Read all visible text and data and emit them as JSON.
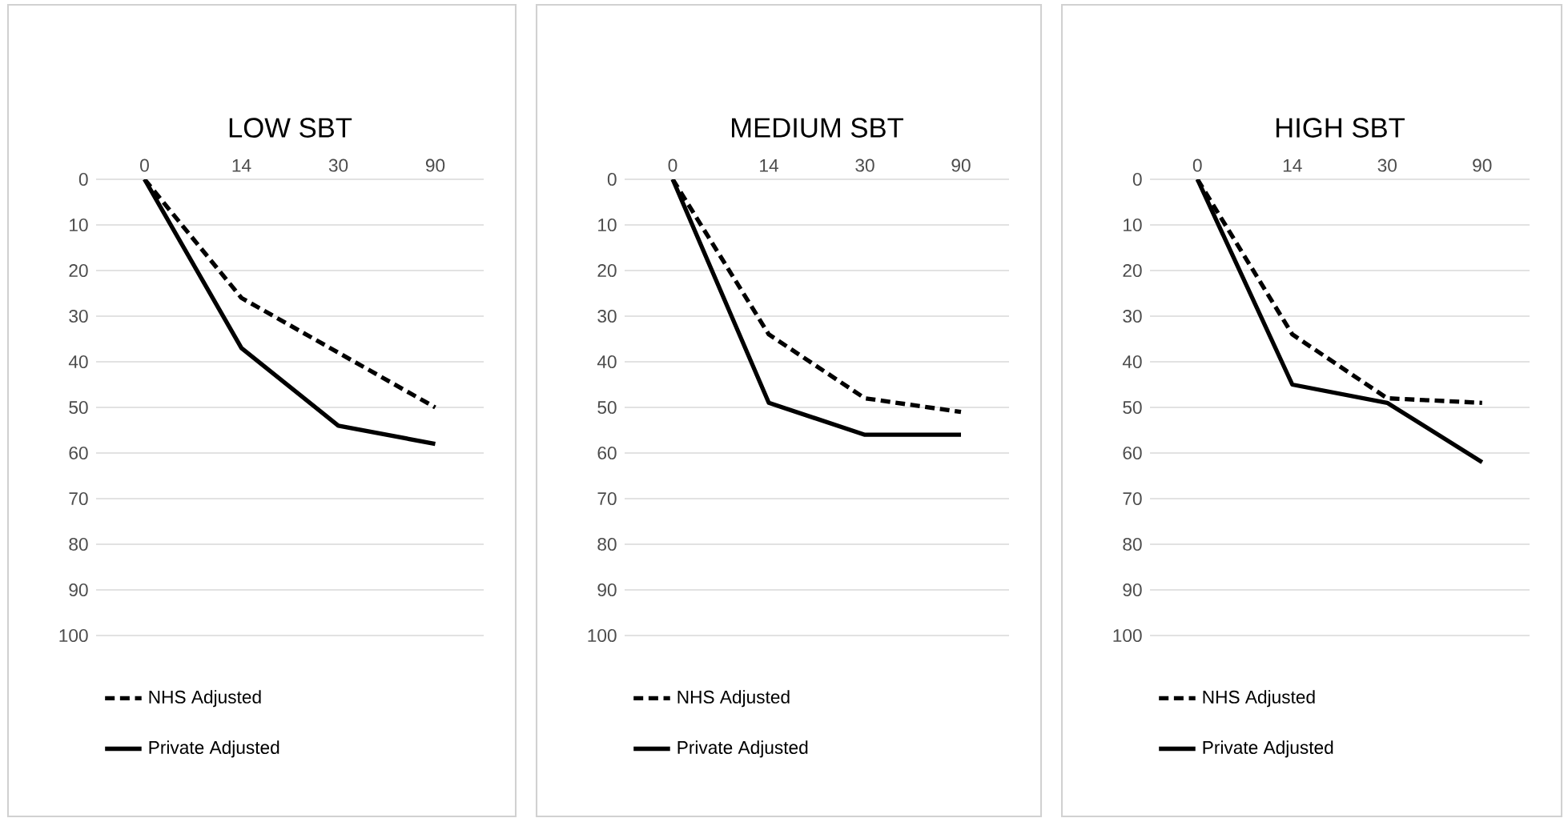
{
  "chart_data": [
    {
      "type": "line",
      "title": "LOW SBT",
      "categories": [
        "0",
        "14",
        "30",
        "90"
      ],
      "ylim": [
        100,
        0
      ],
      "yticks": [
        0,
        10,
        20,
        30,
        40,
        50,
        60,
        70,
        80,
        90,
        100
      ],
      "grid": "y",
      "legend": "bottom",
      "series": [
        {
          "name": "NHS Adjusted",
          "color": "#000000",
          "line_style": "dashed",
          "values": [
            0,
            26,
            38,
            50
          ]
        },
        {
          "name": "Private Adjusted",
          "color": "#000000",
          "line_style": "solid",
          "values": [
            0,
            37,
            54,
            58
          ]
        }
      ]
    },
    {
      "type": "line",
      "title": "MEDIUM SBT",
      "categories": [
        "0",
        "14",
        "30",
        "90"
      ],
      "ylim": [
        100,
        0
      ],
      "yticks": [
        0,
        10,
        20,
        30,
        40,
        50,
        60,
        70,
        80,
        90,
        100
      ],
      "grid": "y",
      "legend": "bottom",
      "series": [
        {
          "name": "NHS Adjusted",
          "color": "#000000",
          "line_style": "dashed",
          "values": [
            0,
            34,
            48,
            51
          ]
        },
        {
          "name": "Private Adjusted",
          "color": "#000000",
          "line_style": "solid",
          "values": [
            0,
            49,
            56,
            56
          ]
        }
      ]
    },
    {
      "type": "line",
      "title": "HIGH SBT",
      "categories": [
        "0",
        "14",
        "30",
        "90"
      ],
      "ylim": [
        100,
        0
      ],
      "yticks": [
        0,
        10,
        20,
        30,
        40,
        50,
        60,
        70,
        80,
        90,
        100
      ],
      "grid": "y",
      "legend": "bottom",
      "series": [
        {
          "name": "NHS Adjusted",
          "color": "#000000",
          "line_style": "dashed",
          "values": [
            0,
            34,
            48,
            49
          ]
        },
        {
          "name": "Private Adjusted",
          "color": "#000000",
          "line_style": "solid",
          "values": [
            0,
            45,
            49,
            62
          ]
        }
      ]
    }
  ]
}
